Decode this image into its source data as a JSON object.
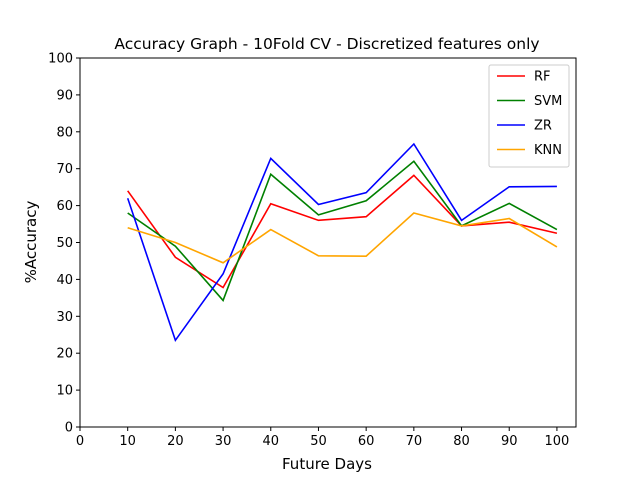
{
  "chart_data": {
    "type": "line",
    "title": "Accuracy Graph - 10Fold CV - Discretized features only",
    "xlabel": "Future Days",
    "ylabel": "%Accuracy",
    "xlim": [
      0,
      104
    ],
    "ylim": [
      0,
      100
    ],
    "x_ticks": [
      0,
      10,
      20,
      30,
      40,
      50,
      60,
      70,
      80,
      90,
      100
    ],
    "y_ticks": [
      0,
      10,
      20,
      30,
      40,
      50,
      60,
      70,
      80,
      90,
      100
    ],
    "x": [
      10,
      20,
      30,
      40,
      50,
      60,
      70,
      80,
      90,
      100
    ],
    "grid": false,
    "legend_position": "top-right",
    "series": [
      {
        "name": "RF",
        "color": "#ff0000",
        "values": [
          64.0,
          46.0,
          37.8,
          60.5,
          56.0,
          57.0,
          68.2,
          54.5,
          55.5,
          52.5
        ]
      },
      {
        "name": "SVM",
        "color": "#008000",
        "values": [
          58.0,
          49.0,
          34.3,
          68.5,
          57.5,
          61.3,
          72.0,
          54.5,
          60.6,
          53.5
        ]
      },
      {
        "name": "ZR",
        "color": "#0000ff",
        "values": [
          62.0,
          23.5,
          41.5,
          72.8,
          60.3,
          63.5,
          76.7,
          56.0,
          65.1,
          65.2
        ]
      },
      {
        "name": "KNN",
        "color": "#ffa500",
        "values": [
          54.0,
          50.0,
          44.5,
          53.5,
          46.4,
          46.3,
          58.0,
          54.5,
          56.5,
          48.8
        ]
      }
    ]
  }
}
